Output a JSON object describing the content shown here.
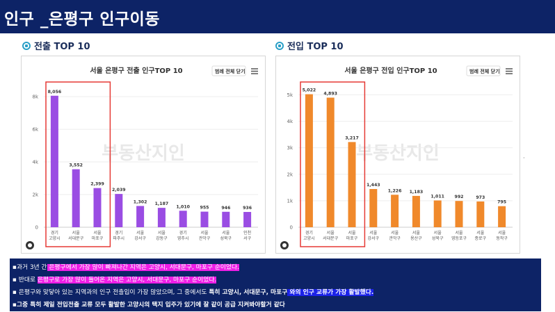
{
  "header": {
    "title": "인구 _은평구 인구이동"
  },
  "sections": {
    "left": "전출 TOP 10",
    "right": "전입 TOP 10"
  },
  "watermark": "부동산지인",
  "chart_data": [
    {
      "type": "bar",
      "title": "서울 은평구 전출 인구TOP 10",
      "legend_button": "범례 전체 닫기",
      "color": "#9a4de3",
      "categories": [
        [
          "경기",
          "고양시"
        ],
        [
          "서울",
          "서대문구"
        ],
        [
          "서울",
          "마포구"
        ],
        [
          "경기",
          "파주시"
        ],
        [
          "서울",
          "강서구"
        ],
        [
          "서울",
          "강동구"
        ],
        [
          "경기",
          "영주시"
        ],
        [
          "서울",
          "관악구"
        ],
        [
          "서울",
          "성북구"
        ],
        [
          "인천",
          "서구"
        ]
      ],
      "values": [
        8056,
        3552,
        2399,
        2039,
        1302,
        1187,
        1010,
        955,
        946,
        936
      ],
      "value_labels": [
        "8,056",
        "3,552",
        "2,399",
        "2,039",
        "1,302",
        "1,187",
        "1,010",
        "955",
        "946",
        "936"
      ],
      "yticks": [
        0,
        2000,
        4000,
        6000,
        8000
      ],
      "ytick_labels": [
        "0",
        "2k",
        "4k",
        "6k",
        "8k"
      ],
      "ylim": [
        0,
        8600
      ],
      "highlight_first_n": 3
    },
    {
      "type": "bar",
      "title": "서울 은평구 전입 인구TOP 10",
      "legend_button": "범례 전체 닫기",
      "color": "#f0892b",
      "categories": [
        [
          "경기",
          "고양시"
        ],
        [
          "서울",
          "서대문구"
        ],
        [
          "서울",
          "마포구"
        ],
        [
          "서울",
          "강서구"
        ],
        [
          "서울",
          "관악구"
        ],
        [
          "서울",
          "용산구"
        ],
        [
          "서울",
          "성북구"
        ],
        [
          "서울",
          "영등포구"
        ],
        [
          "서울",
          "종로구"
        ],
        [
          "서울",
          "동작구"
        ]
      ],
      "values": [
        5022,
        4893,
        3217,
        1443,
        1226,
        1183,
        1011,
        992,
        973,
        795
      ],
      "value_labels": [
        "5,022",
        "4,893",
        "3,217",
        "1,443",
        "1,226",
        "1,183",
        "1,011",
        "992",
        "973",
        "795"
      ],
      "yticks": [
        0,
        1000,
        2000,
        3000,
        4000,
        5000
      ],
      "ytick_labels": [
        "0",
        "1k",
        "2k",
        "3k",
        "4k",
        "5k"
      ],
      "ylim": [
        0,
        5300
      ],
      "highlight_first_n": 3
    }
  ],
  "summary": {
    "line1": {
      "prefix": "▪과거 3년 간",
      "highlight": " 은평구에서 가장 많이 빠져나간 지역은 고양시, 서대문구, 마포구 순이었다."
    },
    "line2": {
      "prefix": "▪ 반대로 ",
      "highlight": "은평구로 가장 많이 들어온 지역은 고양시, 서대문구, 마포구 순이었다."
    },
    "line3": {
      "prefix": "▪ 은평구와 맞닿아 있는 지역과의 인구 전출입이 가장 많았으며, 그 중에서도 ",
      "bold": "특히 고양시, 서대문구, 마포구",
      "blue": " 와의 인구 교류가 가장 활발했다."
    },
    "line4": "▪그중 특히 제일 전입전출 교류 모두 활발한 고양시의 택지 입주가 있기에 잘 같이 공급 지켜봐야할거 같다"
  }
}
